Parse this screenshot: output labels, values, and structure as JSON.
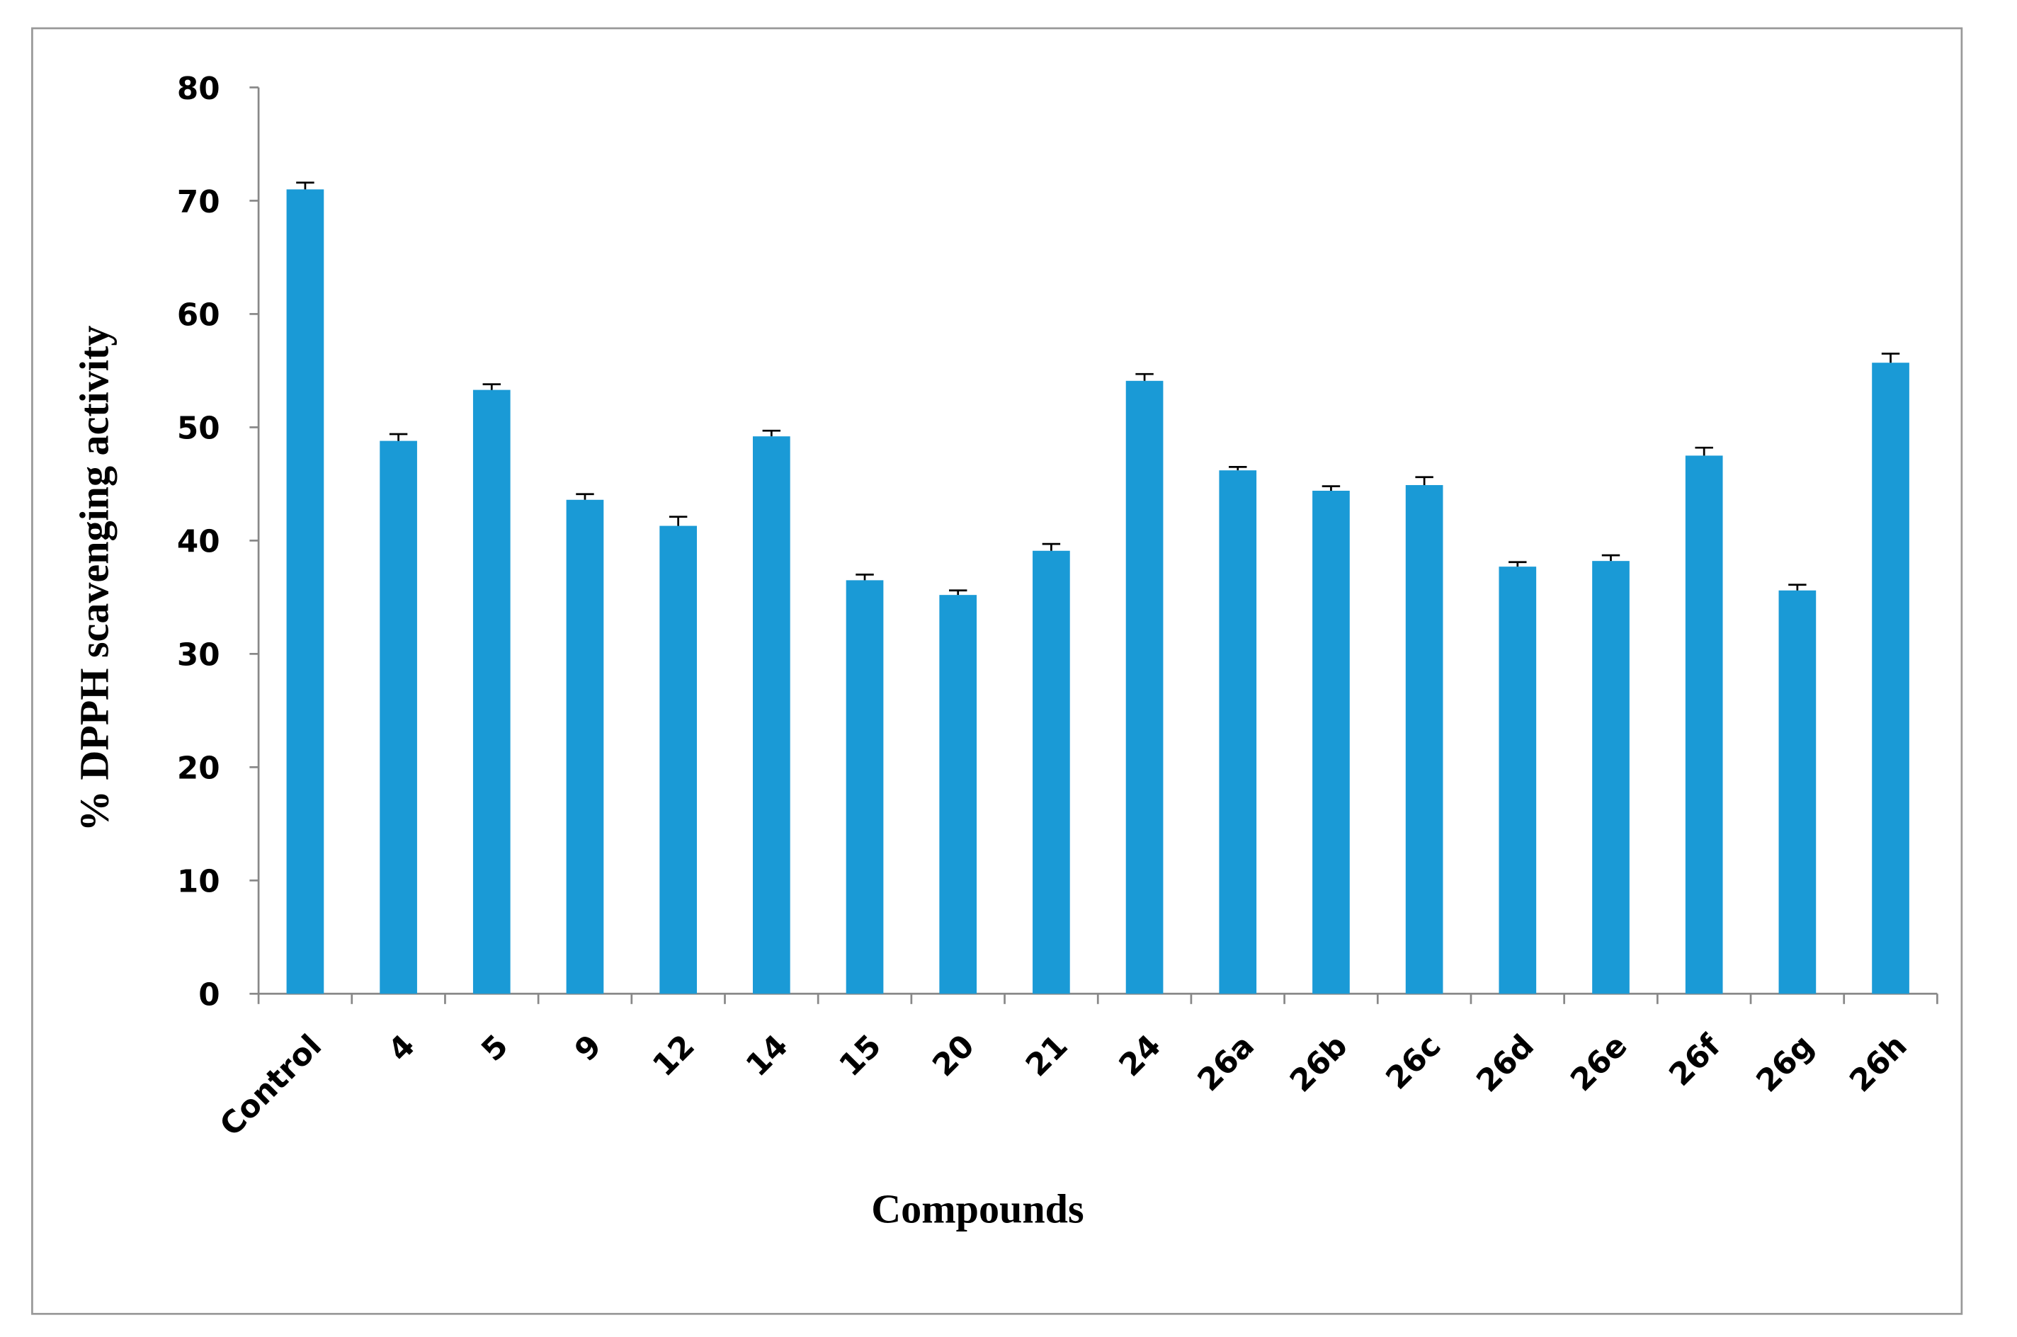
{
  "chart_data": {
    "type": "bar",
    "x_label": "Compounds",
    "y_label": "% DPPH scavenging activity",
    "categories": [
      "Control",
      "4",
      "5",
      "9",
      "12",
      "14",
      "15",
      "20",
      "21",
      "24",
      "26a",
      "26b",
      "26c",
      "26d",
      "26e",
      "26f",
      "26g",
      "26h"
    ],
    "values": [
      71.0,
      48.8,
      53.3,
      43.6,
      41.3,
      49.2,
      36.5,
      35.2,
      39.1,
      54.1,
      46.2,
      44.4,
      44.9,
      37.7,
      38.2,
      47.5,
      35.6,
      55.7
    ],
    "errors": [
      0.6,
      0.6,
      0.5,
      0.5,
      0.8,
      0.5,
      0.5,
      0.4,
      0.6,
      0.6,
      0.3,
      0.4,
      0.7,
      0.4,
      0.5,
      0.7,
      0.5,
      0.8
    ],
    "color": "#1a9ad6",
    "ylim": [
      0,
      80
    ],
    "yticks": [
      0,
      10,
      20,
      30,
      40,
      50,
      60,
      70,
      80
    ],
    "grid": false
  }
}
